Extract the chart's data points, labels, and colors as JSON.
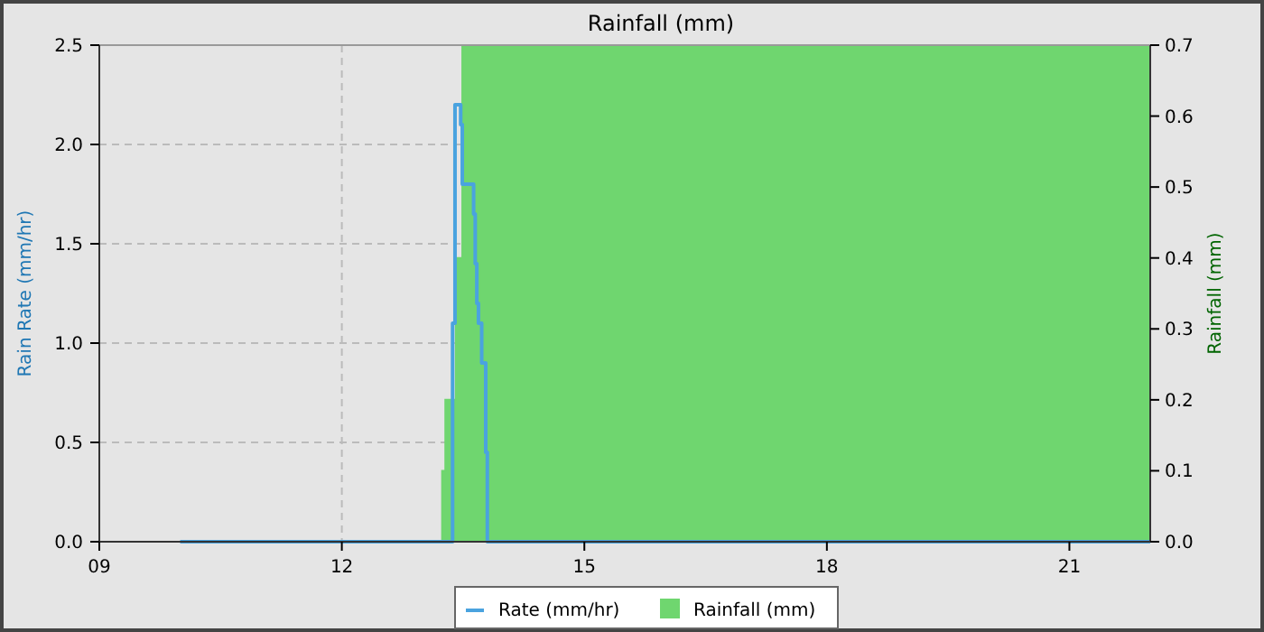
{
  "chart_data": {
    "type": "step",
    "title": "Rainfall (mm)",
    "ylabel": "Rain Rate (mm/hr)",
    "y2label": "Rainfall (mm)",
    "xlim": [
      9,
      22
    ],
    "xticks": [
      {
        "value": 9,
        "label": "09"
      },
      {
        "value": 12,
        "label": "12"
      },
      {
        "value": 15,
        "label": "15"
      },
      {
        "value": 18,
        "label": "18"
      },
      {
        "value": 21,
        "label": "21"
      }
    ],
    "ylim": [
      0,
      2.5
    ],
    "yticks": [
      {
        "value": 0,
        "label": "0.0"
      },
      {
        "value": 0.5,
        "label": "0.5"
      },
      {
        "value": 1,
        "label": "1.0"
      },
      {
        "value": 1.5,
        "label": "1.5"
      },
      {
        "value": 2,
        "label": "2.0"
      },
      {
        "value": 2.5,
        "label": "2.5"
      }
    ],
    "y2lim": [
      0,
      0.7
    ],
    "y2ticks": [
      {
        "value": 0,
        "label": "0.0"
      },
      {
        "value": 0.1,
        "label": "0.1"
      },
      {
        "value": 0.2,
        "label": "0.2"
      },
      {
        "value": 0.3,
        "label": "0.3"
      },
      {
        "value": 0.4,
        "label": "0.4"
      },
      {
        "value": 0.5,
        "label": "0.5"
      },
      {
        "value": 0.6,
        "label": "0.6"
      },
      {
        "value": 0.7,
        "label": "0.7"
      }
    ],
    "grid": true,
    "legend": "bottom",
    "series": [
      {
        "name": "Rainfall (mm)",
        "type": "area",
        "axis": "y2",
        "color": "#6fd66f",
        "x": [
          10,
          13.24,
          13.28,
          13.41,
          13.49,
          22
        ],
        "values": [
          0,
          0.1,
          0.2,
          0.4,
          0.7,
          0.7
        ]
      },
      {
        "name": "Rate (mm/hr)",
        "color": "#4aa3df",
        "x": [
          10,
          13.37,
          13.4,
          13.47,
          13.49,
          13.63,
          13.65,
          13.67,
          13.69,
          13.73,
          13.78,
          13.8,
          22
        ],
        "values": [
          0,
          1.1,
          2.2,
          2.1,
          1.8,
          1.65,
          1.4,
          1.2,
          1.1,
          0.9,
          0.45,
          0,
          0
        ]
      }
    ]
  }
}
